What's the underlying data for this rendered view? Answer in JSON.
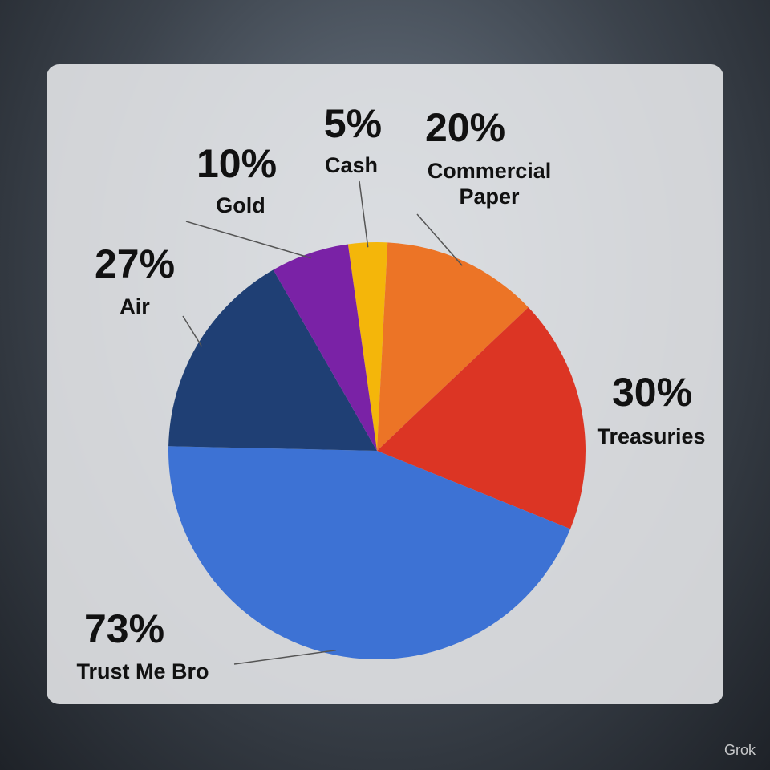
{
  "chart_data": {
    "type": "pie",
    "categories": [
      "Cash",
      "Commercial Paper",
      "Treasuries",
      "Trust Me Bro",
      "Air",
      "Gold"
    ],
    "values": [
      5,
      20,
      30,
      73,
      27,
      10
    ],
    "value_labels": [
      "5%",
      "20%",
      "30%",
      "73%",
      "27%",
      "10%"
    ],
    "colors": [
      "#f4b60a",
      "#ec7426",
      "#dc3524",
      "#3d72d4",
      "#1f3f74",
      "#7a22a6"
    ]
  },
  "watermark": "Grok"
}
